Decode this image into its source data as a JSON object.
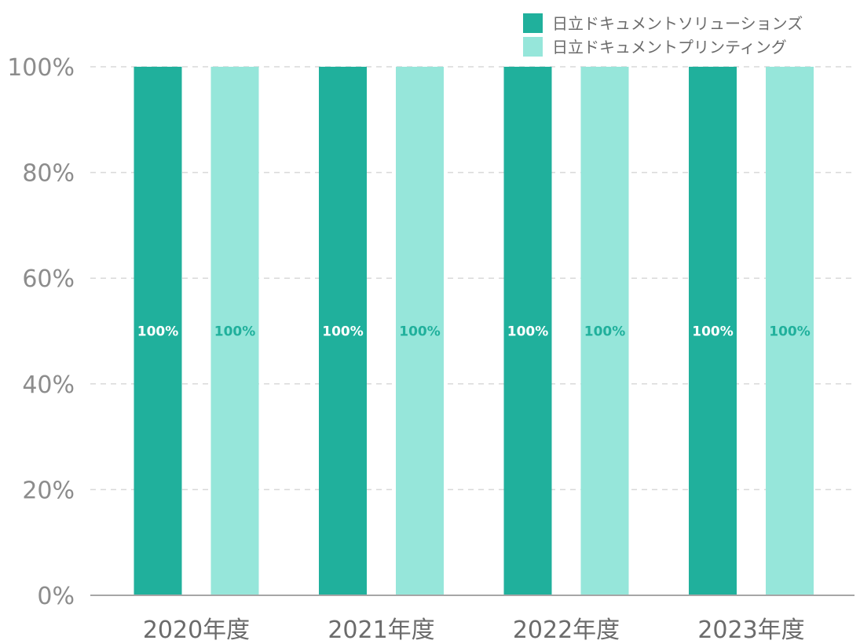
{
  "chart_data": {
    "type": "bar",
    "categories": [
      "2020年度",
      "2021年度",
      "2022年度",
      "2023年度"
    ],
    "series": [
      {
        "name": "日立ドキュメントソリューションズ",
        "values": [
          100,
          100,
          100,
          100
        ],
        "color": "#20b09c",
        "label_color": "#ffffff"
      },
      {
        "name": "日立ドキュメントプリンティング",
        "values": [
          100,
          100,
          100,
          100
        ],
        "color": "#96e6da",
        "label_color": "#20b09c"
      }
    ],
    "data_labels": [
      [
        "100%",
        "100%",
        "100%",
        "100%"
      ],
      [
        "100%",
        "100%",
        "100%",
        "100%"
      ]
    ],
    "yticks": [
      "0%",
      "20%",
      "40%",
      "60%",
      "80%",
      "100%"
    ],
    "ylim": [
      0,
      100
    ],
    "grid": true,
    "legend_position": "top-right",
    "title": "",
    "xlabel": "",
    "ylabel": ""
  }
}
